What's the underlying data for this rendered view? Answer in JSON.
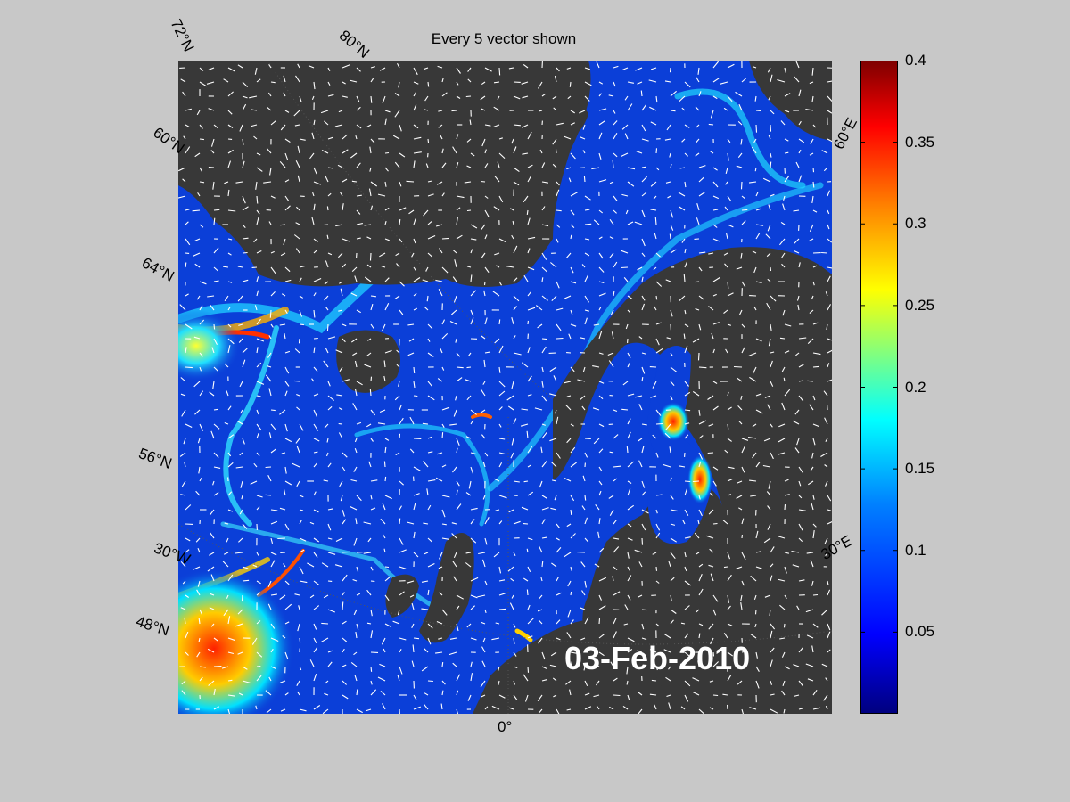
{
  "title": "Every 5 vector shown",
  "date_label": "03-Feb-2010",
  "map": {
    "ocean_color": "#0b3fd8",
    "land_color": "#383838",
    "vector_color": "#ffffff"
  },
  "graticule_labels": {
    "lat_72": "72°N",
    "lat_80": "80°N",
    "lat_60": "60°N",
    "lat_64": "64°N",
    "lat_56": "56°N",
    "lon_30w": "30°W",
    "lat_48": "48°N",
    "lon_0": "0°",
    "lon_30e": "30°E",
    "lon_60e": "60°E"
  },
  "colorbar": {
    "min": 0,
    "max": 0.4,
    "ticks": [
      "0.4",
      "0.35",
      "0.3",
      "0.25",
      "0.2",
      "0.15",
      "0.1",
      "0.05"
    ],
    "tick_values": [
      0.4,
      0.35,
      0.3,
      0.25,
      0.2,
      0.15,
      0.1,
      0.05
    ]
  }
}
